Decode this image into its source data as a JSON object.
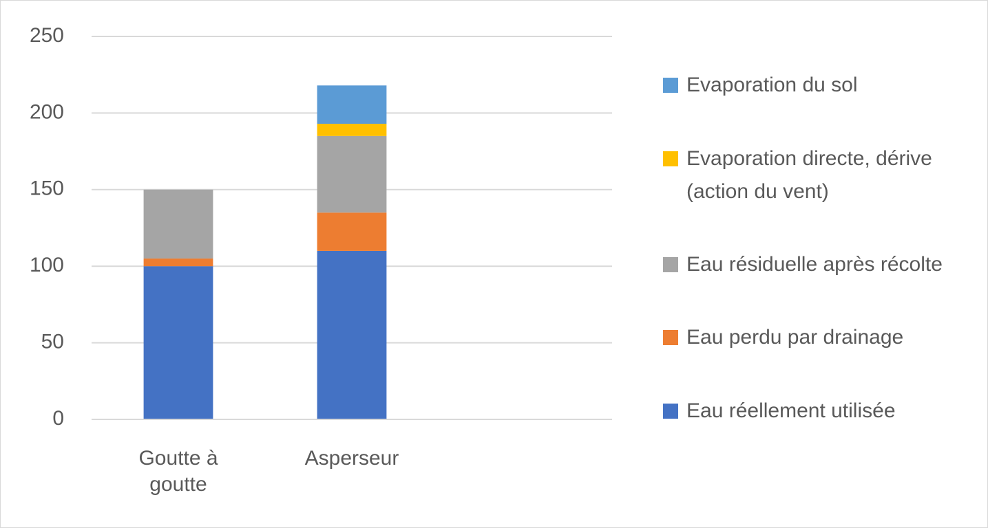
{
  "chart_data": {
    "type": "stacked_bar",
    "categories": [
      "Goutte à goutte",
      "Asperseur",
      null
    ],
    "series": [
      {
        "name": "Eau réellement utilisée",
        "color": "#4472c4",
        "values": [
          100,
          110,
          null
        ]
      },
      {
        "name": "Eau perdu par drainage",
        "color": "#ed7d31",
        "values": [
          5,
          25,
          null
        ]
      },
      {
        "name": "Eau résiduelle après récolte",
        "color": "#a5a5a5",
        "values": [
          45,
          50,
          null
        ]
      },
      {
        "name": "Evaporation directe, dérive (action du vent)",
        "color": "#ffc000",
        "values": [
          0,
          8,
          null
        ]
      },
      {
        "name": "Evaporation du sol",
        "color": "#5b9bd5",
        "values": [
          0,
          25,
          null
        ]
      }
    ],
    "ylim": [
      0,
      250
    ],
    "yticks": [
      0,
      50,
      100,
      150,
      200,
      250
    ],
    "grid": true,
    "legend": "right"
  }
}
